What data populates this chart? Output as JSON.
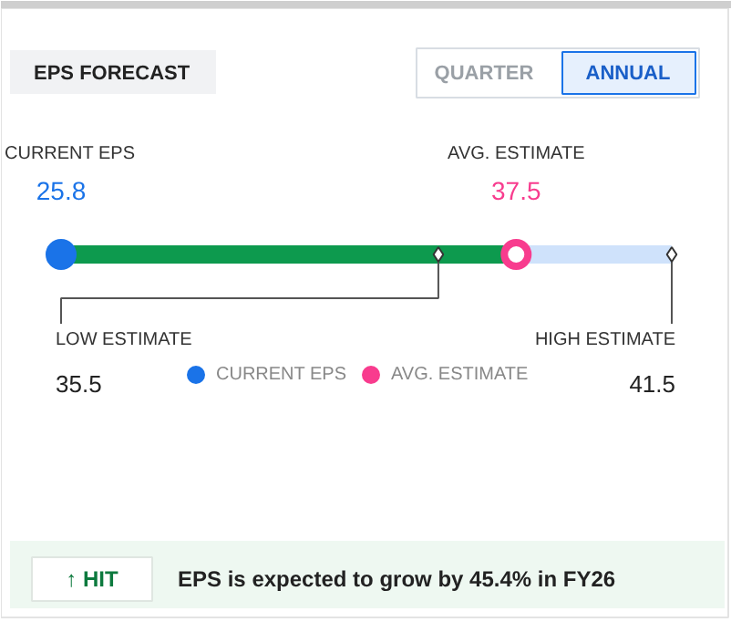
{
  "chart_data": {
    "type": "other",
    "title": "EPS FORECAST",
    "series": [
      {
        "name": "CURRENT EPS",
        "color": "#1a73e8",
        "values": [
          25.8
        ],
        "marker": "circle"
      },
      {
        "name": "LOW ESTIMATE",
        "color": "#333333",
        "values": [
          35.5
        ],
        "marker": "diamond"
      },
      {
        "name": "AVG. ESTIMATE",
        "color": "#f83c8e",
        "values": [
          37.5
        ],
        "marker": "circle"
      },
      {
        "name": "HIGH ESTIMATE",
        "color": "#333333",
        "values": [
          41.5
        ],
        "marker": "diamond"
      }
    ],
    "colors": [
      "#0d9a4e",
      "#0d9a4e",
      "#cfe2fb"
    ],
    "data_labels": true,
    "legend": "bottom",
    "annotations": [
      "QUARTER",
      "ANNUAL",
      "↑ HIT",
      "EPS is expected to grow by 45.4% in FY26"
    ]
  }
}
